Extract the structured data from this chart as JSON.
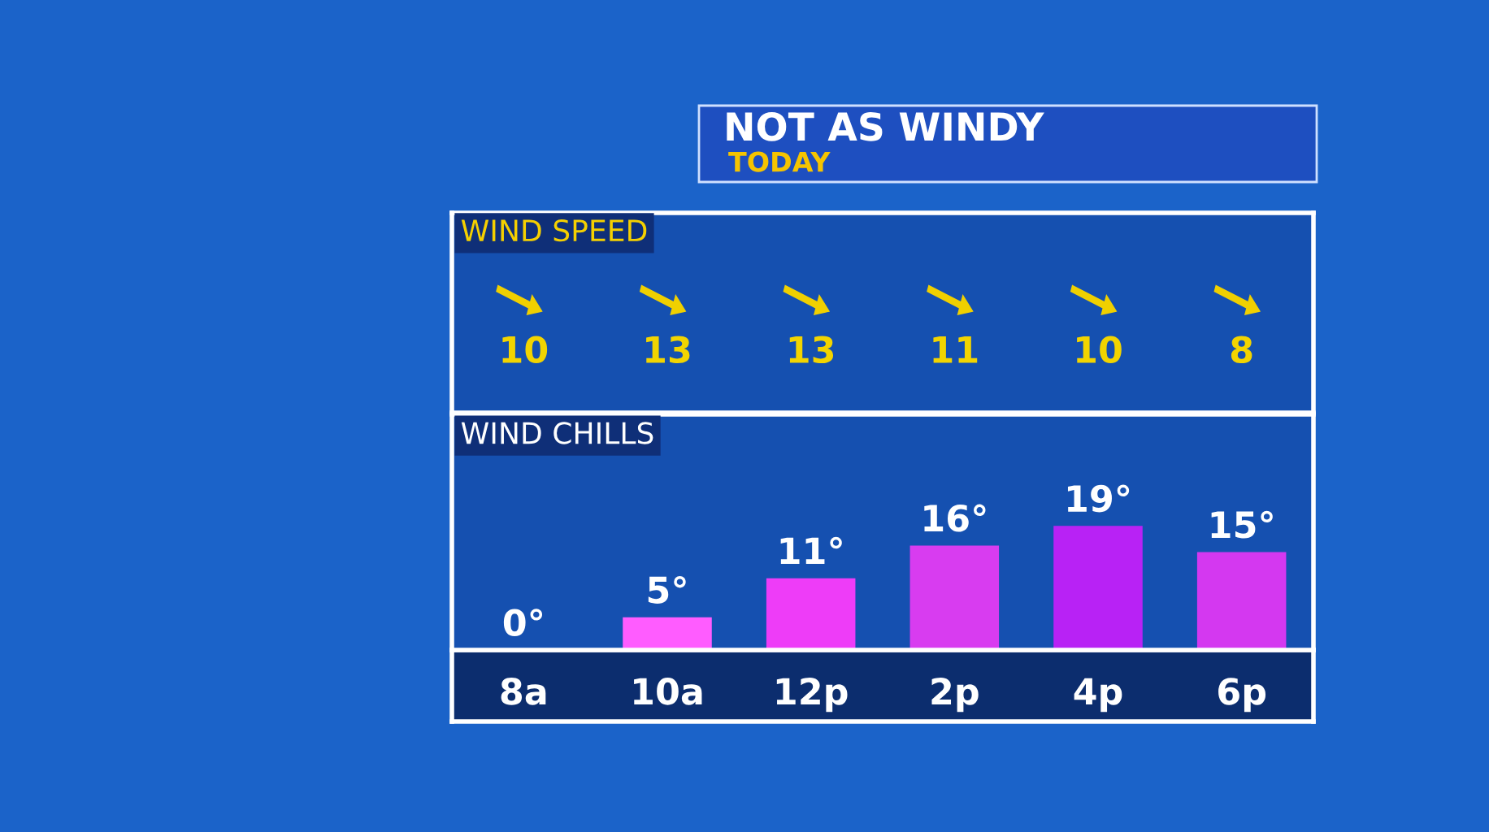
{
  "chart_data": [
    {
      "type": "other",
      "title": "NOT AS WINDY",
      "subtitle": "TODAY"
    },
    {
      "type": "other",
      "title": "WIND SPEED",
      "categories": [
        null,
        null,
        null,
        null,
        null,
        null
      ],
      "values": [
        10,
        13,
        13,
        11,
        10,
        8
      ],
      "data_labels": true
    },
    {
      "type": "bar",
      "title": "WIND CHILLS",
      "categories": [
        "8a",
        "10a",
        "12p",
        "2p",
        "4p",
        "6p"
      ],
      "values": [
        0,
        5,
        11,
        16,
        19,
        15
      ],
      "colors": [
        "#ff66ff",
        "#ff5cff",
        "#ee3cf8",
        "#d83cf0",
        "#b822f5",
        "#d438f0"
      ],
      "value_labels": [
        "0°",
        "5°",
        "11°",
        "16°",
        "19°",
        "15°"
      ],
      "tick_labels": "x"
    }
  ]
}
